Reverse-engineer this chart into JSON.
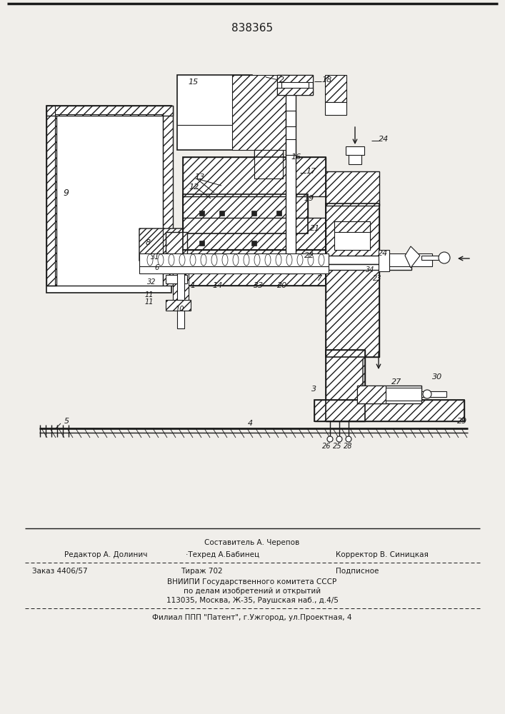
{
  "patent_number": "838365",
  "bg": "#f0eeea",
  "lc": "#1a1a1a",
  "footer": {
    "compositor": "Составитель А. Черепов",
    "editor": "Редактор А. Долинич",
    "techred": "·Техред А.Бабинец",
    "corrector": "Корректор В. Синицкая",
    "order": "Заказ 4406/57",
    "tirazh": "Тираж 702",
    "podpisnoe": "Подписное",
    "vniip1": "ВНИИПИ Государственного комитета СССР",
    "vniip2": "по делам изобретений и открытий",
    "vniip3": "113035, Москва, Ж-35, Раушская наб., д.4/5",
    "filial": "Филиал ППП \"Патент\", г.Ужгород, ул.Проектная, 4"
  }
}
